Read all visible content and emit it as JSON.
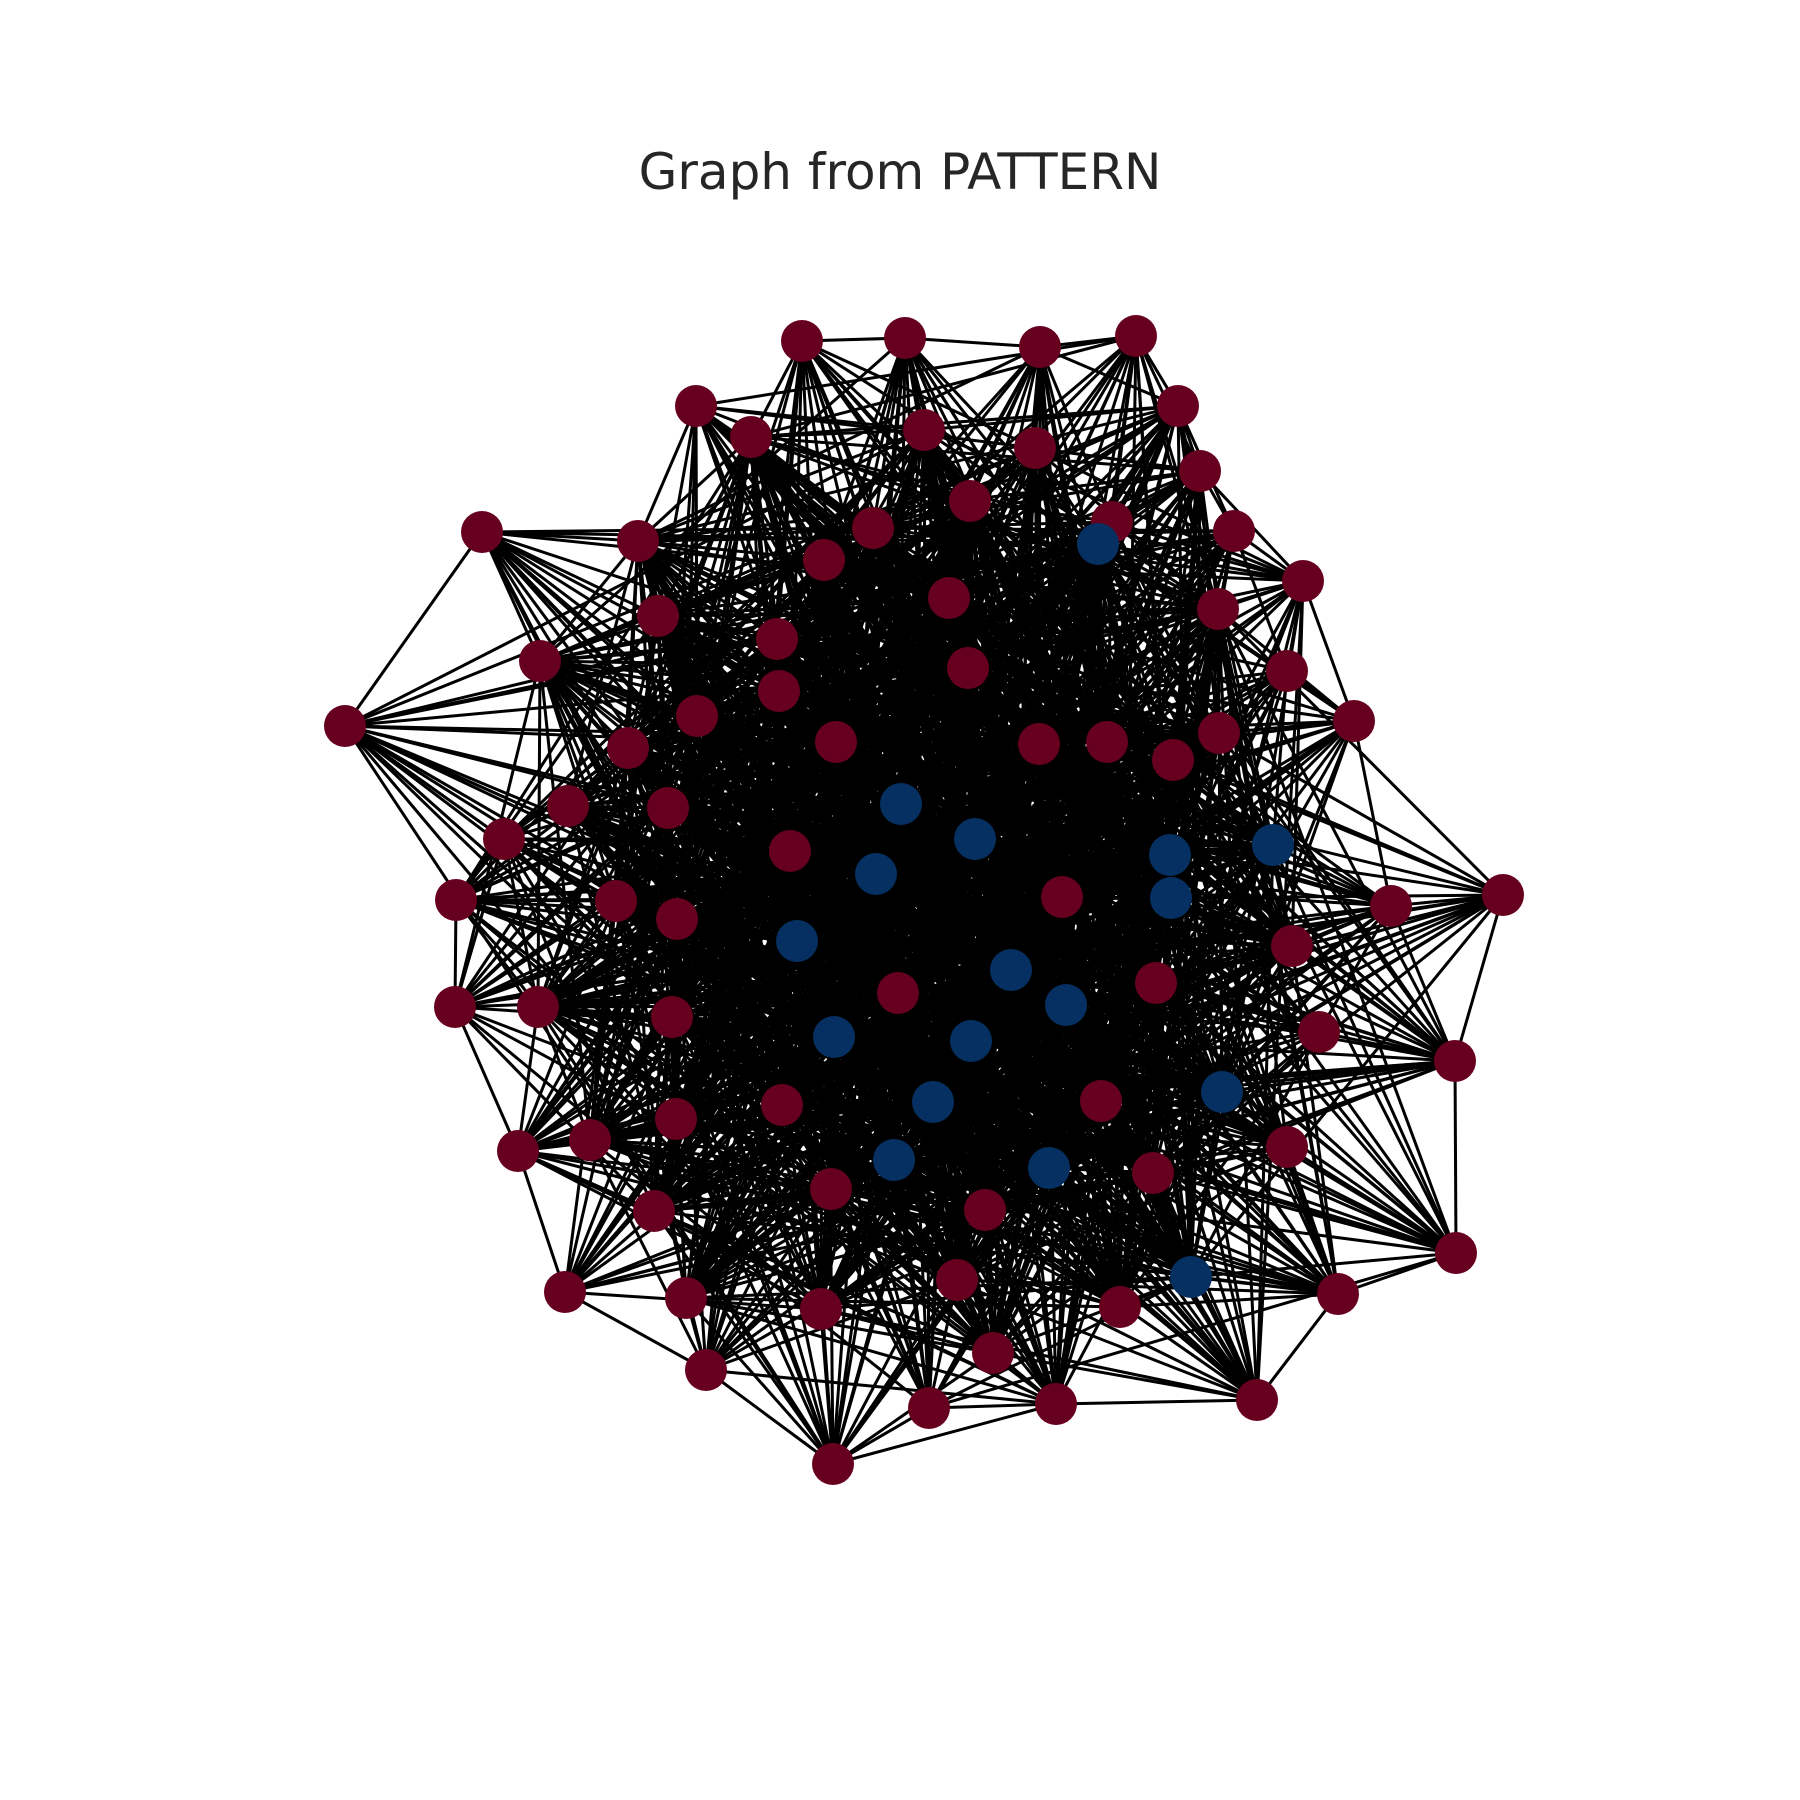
{
  "title": "Graph from PATTERN",
  "colors": {
    "edge": "#000000",
    "class_0": "#67001f",
    "class_1": "#053061",
    "background": "#ffffff"
  },
  "chart_data": {
    "type": "network",
    "title": "Graph from PATTERN",
    "xlabel": "",
    "ylabel": "",
    "grid": false,
    "legend": "none",
    "node_classes": [
      "class_0",
      "class_1"
    ]
  }
}
